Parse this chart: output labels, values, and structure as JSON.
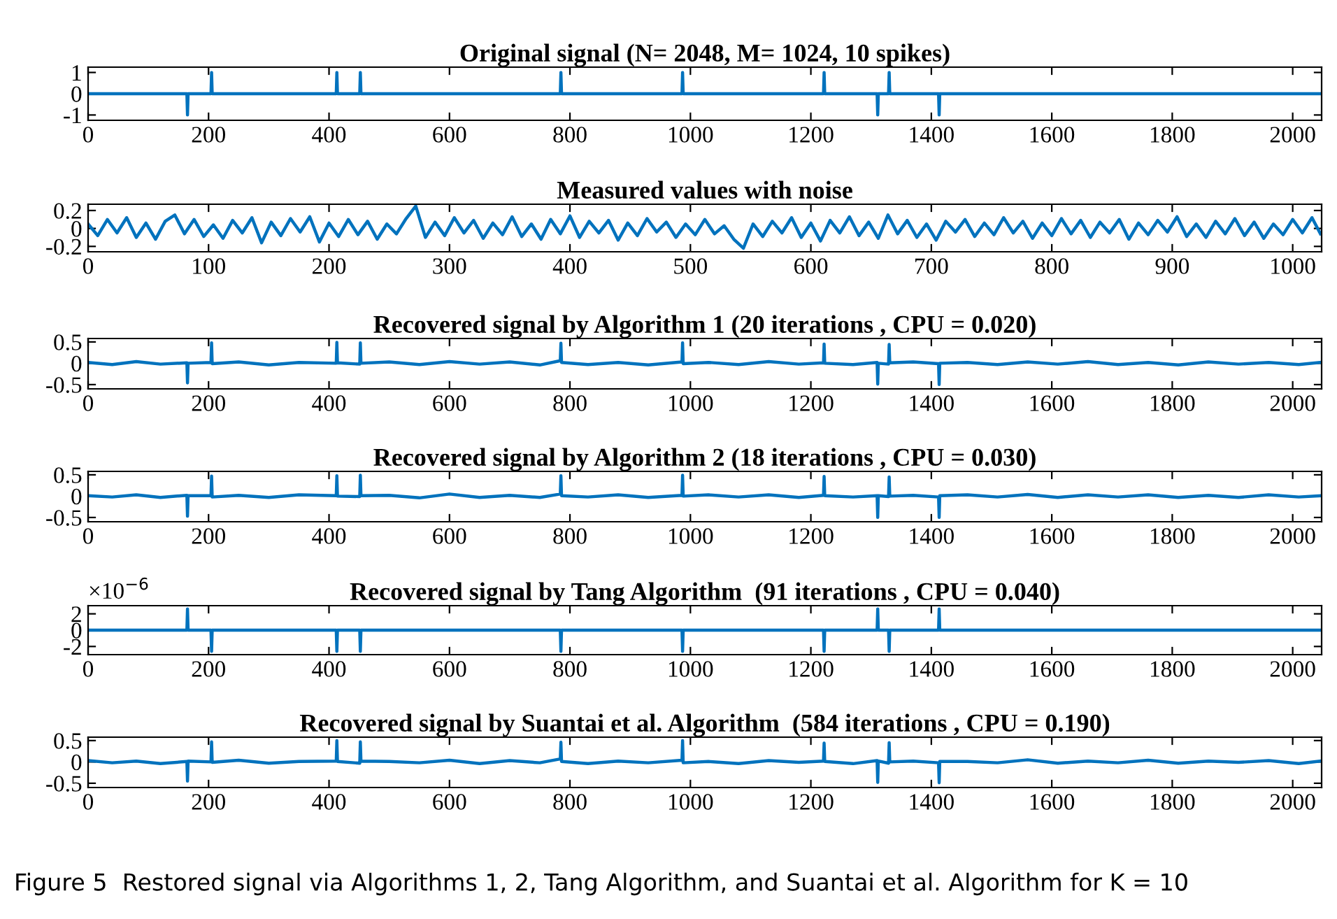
{
  "chart_data": [
    {
      "type": "line",
      "title": "Original signal (N= 2048, M= 1024, 10 spikes)",
      "xlim": [
        0,
        2048
      ],
      "xticks": [
        0,
        200,
        400,
        600,
        800,
        1000,
        1200,
        1400,
        1600,
        1800,
        2000
      ],
      "ylim": [
        -1.25,
        1.25
      ],
      "yticks": [
        {
          "value": -1,
          "label": "-1"
        },
        0,
        1
      ],
      "series": [
        {
          "color": "#0072bd",
          "x": [
            0,
            164,
            165,
            166,
            204,
            205,
            206,
            412,
            413,
            414,
            451,
            452,
            453,
            784,
            785,
            786,
            986,
            987,
            988,
            1221,
            1222,
            1223,
            1310,
            1311,
            1312,
            1329,
            1330,
            1331,
            1412,
            1413,
            1414,
            2047
          ],
          "values": [
            0,
            0,
            -1,
            0,
            0,
            1,
            0,
            0,
            1,
            0,
            0,
            1,
            0,
            0,
            1,
            0,
            0,
            1,
            0,
            0,
            1,
            0,
            0,
            -1,
            0,
            0,
            1,
            0,
            0,
            -1,
            0,
            0
          ]
        }
      ]
    },
    {
      "type": "line",
      "title": "Measured values with noise",
      "xlim": [
        0,
        1024
      ],
      "xticks": [
        0,
        100,
        200,
        300,
        400,
        500,
        600,
        700,
        800,
        900,
        1000
      ],
      "ylim": [
        -0.26,
        0.27
      ],
      "yticks": [
        {
          "value": -0.2,
          "label": "-0.2"
        },
        0,
        0.2
      ],
      "series": [
        {
          "color": "#0072bd",
          "x": [
            0,
            8,
            16,
            24,
            32,
            40,
            48,
            56,
            64,
            72,
            80,
            88,
            96,
            104,
            112,
            120,
            128,
            136,
            144,
            152,
            160,
            168,
            176,
            184,
            192,
            200,
            208,
            216,
            224,
            232,
            240,
            248,
            256,
            264,
            272,
            280,
            288,
            296,
            304,
            312,
            320,
            328,
            336,
            344,
            352,
            360,
            368,
            376,
            384,
            392,
            400,
            408,
            416,
            424,
            432,
            440,
            448,
            456,
            464,
            472,
            480,
            488,
            496,
            504,
            512,
            520,
            528,
            536,
            544,
            552,
            560,
            568,
            576,
            584,
            592,
            600,
            608,
            616,
            624,
            632,
            640,
            648,
            656,
            664,
            672,
            680,
            688,
            696,
            704,
            712,
            720,
            728,
            736,
            744,
            752,
            760,
            768,
            776,
            784,
            792,
            800,
            808,
            816,
            824,
            832,
            840,
            848,
            856,
            864,
            872,
            880,
            888,
            896,
            904,
            912,
            920,
            928,
            936,
            944,
            952,
            960,
            968,
            976,
            984,
            992,
            1000,
            1008,
            1016,
            1023
          ],
          "values": [
            0.05,
            -0.08,
            0.1,
            -0.05,
            0.12,
            -0.1,
            0.06,
            -0.12,
            0.08,
            0.15,
            -0.06,
            0.1,
            -0.09,
            0.04,
            -0.11,
            0.09,
            -0.05,
            0.12,
            -0.16,
            0.07,
            -0.08,
            0.11,
            -0.04,
            0.13,
            -0.15,
            0.06,
            -0.09,
            0.1,
            -0.07,
            0.08,
            -0.12,
            0.05,
            -0.06,
            0.11,
            0.25,
            -0.1,
            0.07,
            -0.08,
            0.12,
            -0.05,
            0.09,
            -0.11,
            0.06,
            -0.07,
            0.13,
            -0.09,
            0.05,
            -0.12,
            0.1,
            -0.06,
            0.14,
            -0.1,
            0.08,
            -0.05,
            0.09,
            -0.13,
            0.06,
            -0.08,
            0.11,
            -0.04,
            0.07,
            -0.1,
            0.05,
            -0.07,
            0.1,
            -0.06,
            0.03,
            -0.12,
            -0.22,
            0.05,
            -0.09,
            0.08,
            -0.05,
            0.12,
            -0.1,
            0.06,
            -0.14,
            0.09,
            -0.05,
            0.13,
            -0.08,
            0.07,
            -0.11,
            0.15,
            -0.06,
            0.09,
            -0.1,
            0.05,
            -0.13,
            0.08,
            -0.04,
            0.1,
            -0.09,
            0.06,
            -0.07,
            0.12,
            -0.05,
            0.08,
            -0.11,
            0.06,
            -0.08,
            0.11,
            -0.06,
            0.09,
            -0.1,
            0.07,
            -0.05,
            0.1,
            -0.12,
            0.06,
            -0.07,
            0.09,
            -0.04,
            0.13,
            -0.09,
            0.05,
            -0.1,
            0.08,
            -0.06,
            0.11,
            -0.08,
            0.07,
            -0.11,
            0.05,
            -0.07,
            0.1,
            -0.05,
            0.12,
            -0.06
          ]
        }
      ]
    },
    {
      "type": "line",
      "title": "Recovered signal by Algorithm 1 (20 iterations , CPU = 0.020)",
      "xlim": [
        0,
        2048
      ],
      "xticks": [
        0,
        200,
        400,
        600,
        800,
        1000,
        1200,
        1400,
        1600,
        1800,
        2000
      ],
      "ylim": [
        -0.6,
        0.58
      ],
      "yticks": [
        {
          "value": -0.5,
          "label": "-0.5"
        },
        0,
        0.5
      ],
      "series": [
        {
          "color": "#0072bd",
          "x": [
            0,
            40,
            80,
            120,
            164,
            165,
            166,
            204,
            205,
            206,
            250,
            300,
            350,
            412,
            413,
            414,
            451,
            452,
            453,
            500,
            550,
            600,
            650,
            700,
            750,
            784,
            785,
            786,
            830,
            880,
            930,
            986,
            987,
            988,
            1030,
            1080,
            1130,
            1180,
            1221,
            1222,
            1223,
            1270,
            1310,
            1311,
            1312,
            1329,
            1330,
            1331,
            1370,
            1412,
            1413,
            1414,
            1460,
            1510,
            1560,
            1610,
            1660,
            1710,
            1760,
            1810,
            1860,
            1910,
            1960,
            2010,
            2047
          ],
          "values": [
            0.02,
            -0.03,
            0.04,
            -0.02,
            0.01,
            -0.46,
            0.0,
            0.02,
            0.48,
            -0.01,
            0.03,
            -0.04,
            0.02,
            0.0,
            0.49,
            0.01,
            -0.02,
            0.48,
            0.0,
            0.03,
            -0.03,
            0.04,
            -0.02,
            0.03,
            -0.04,
            0.06,
            0.47,
            0.02,
            -0.03,
            0.02,
            -0.04,
            0.03,
            0.48,
            -0.01,
            0.02,
            -0.03,
            0.04,
            -0.02,
            0.01,
            0.45,
            0.0,
            -0.03,
            0.02,
            -0.49,
            0.0,
            -0.02,
            0.44,
            0.01,
            0.03,
            -0.01,
            -0.5,
            0.0,
            0.02,
            -0.03,
            0.03,
            -0.02,
            0.04,
            -0.03,
            0.02,
            -0.04,
            0.03,
            -0.02,
            0.02,
            -0.03,
            0.02
          ]
        }
      ]
    },
    {
      "type": "line",
      "title": "Recovered signal by Algorithm 2 (18 iterations , CPU = 0.030)",
      "xlim": [
        0,
        2048
      ],
      "xticks": [
        0,
        200,
        400,
        600,
        800,
        1000,
        1200,
        1400,
        1600,
        1800,
        2000
      ],
      "ylim": [
        -0.6,
        0.58
      ],
      "yticks": [
        {
          "value": -0.5,
          "label": "-0.5"
        },
        0,
        0.5
      ],
      "series": [
        {
          "color": "#0072bd",
          "x": [
            0,
            40,
            80,
            120,
            164,
            165,
            166,
            204,
            205,
            206,
            250,
            300,
            350,
            412,
            413,
            414,
            451,
            452,
            453,
            500,
            550,
            600,
            650,
            700,
            750,
            784,
            785,
            786,
            830,
            880,
            930,
            986,
            987,
            988,
            1030,
            1080,
            1130,
            1180,
            1221,
            1222,
            1223,
            1270,
            1310,
            1311,
            1312,
            1329,
            1330,
            1331,
            1370,
            1412,
            1413,
            1414,
            1460,
            1510,
            1560,
            1610,
            1660,
            1710,
            1760,
            1810,
            1860,
            1910,
            1960,
            2010,
            2047
          ],
          "values": [
            0.01,
            -0.02,
            0.03,
            -0.03,
            0.02,
            -0.47,
            0.01,
            0.01,
            0.47,
            -0.02,
            0.02,
            -0.03,
            0.03,
            0.01,
            0.48,
            0.0,
            -0.01,
            0.49,
            0.01,
            0.02,
            -0.04,
            0.05,
            -0.03,
            0.02,
            -0.03,
            0.05,
            0.48,
            0.01,
            -0.02,
            0.03,
            -0.03,
            0.02,
            0.49,
            0.0,
            0.03,
            -0.02,
            0.03,
            -0.03,
            0.02,
            0.46,
            0.01,
            -0.02,
            0.01,
            -0.5,
            0.01,
            -0.01,
            0.45,
            0.0,
            0.02,
            -0.02,
            -0.5,
            0.01,
            0.03,
            -0.02,
            0.04,
            -0.03,
            0.03,
            -0.02,
            0.03,
            -0.03,
            0.02,
            -0.03,
            0.03,
            -0.02,
            0.01
          ]
        }
      ]
    },
    {
      "type": "line",
      "title": "Recovered signal by Tang Algorithm  (91 iterations , CPU = 0.040)",
      "annotations": [
        "×10$^{−6}$"
      ],
      "xlim": [
        0,
        2048
      ],
      "xticks": [
        0,
        200,
        400,
        600,
        800,
        1000,
        1200,
        1400,
        1600,
        1800,
        2000
      ],
      "ylim": [
        -3,
        3
      ],
      "yticks": [
        {
          "value": -2,
          "label": "-2"
        },
        0,
        2
      ],
      "series": [
        {
          "color": "#0072bd",
          "x": [
            0,
            164,
            165,
            166,
            204,
            205,
            206,
            412,
            413,
            414,
            451,
            452,
            453,
            784,
            785,
            786,
            986,
            987,
            988,
            1221,
            1222,
            1223,
            1310,
            1311,
            1312,
            1329,
            1330,
            1331,
            1412,
            1413,
            1414,
            2047
          ],
          "values": [
            0,
            0,
            2.6,
            0,
            0,
            -2.6,
            0,
            0,
            -2.6,
            0,
            0,
            -2.6,
            0,
            0,
            -2.6,
            0,
            0,
            -2.6,
            0,
            0,
            -2.6,
            0,
            0,
            2.6,
            0,
            0,
            -2.6,
            0,
            0,
            2.6,
            0,
            0
          ]
        }
      ]
    },
    {
      "type": "line",
      "title": "Recovered signal by Suantai et al. Algorithm  (584 iterations , CPU = 0.190)",
      "annotations": [
        "Figure 5  Restored signal via Algorithms 1, 2, Tang Algorithm, and Suantai et al. Algorithm for K = 10"
      ],
      "xlim": [
        0,
        2048
      ],
      "xticks": [
        0,
        200,
        400,
        600,
        800,
        1000,
        1200,
        1400,
        1600,
        1800,
        2000
      ],
      "ylim": [
        -0.6,
        0.58
      ],
      "yticks": [
        {
          "value": -0.5,
          "label": "-0.5"
        },
        0,
        0.5
      ],
      "series": [
        {
          "color": "#0072bd",
          "x": [
            0,
            40,
            80,
            120,
            164,
            165,
            166,
            204,
            205,
            206,
            250,
            300,
            350,
            412,
            413,
            414,
            451,
            452,
            453,
            500,
            550,
            600,
            650,
            700,
            750,
            784,
            785,
            786,
            830,
            880,
            930,
            986,
            987,
            988,
            1030,
            1080,
            1130,
            1180,
            1221,
            1222,
            1223,
            1270,
            1310,
            1311,
            1312,
            1329,
            1330,
            1331,
            1370,
            1412,
            1413,
            1414,
            1460,
            1510,
            1560,
            1610,
            1660,
            1710,
            1760,
            1810,
            1860,
            1910,
            1960,
            2010,
            2047
          ],
          "values": [
            0.03,
            -0.02,
            0.02,
            -0.04,
            0.01,
            -0.45,
            0.02,
            0.0,
            0.47,
            -0.01,
            0.04,
            -0.03,
            0.01,
            0.02,
            0.5,
            0.01,
            -0.03,
            0.47,
            0.02,
            0.01,
            -0.02,
            0.04,
            -0.04,
            0.03,
            -0.02,
            0.07,
            0.46,
            0.01,
            -0.04,
            0.02,
            -0.02,
            0.04,
            0.5,
            -0.02,
            0.01,
            -0.04,
            0.03,
            -0.01,
            0.02,
            0.44,
            0.01,
            -0.04,
            0.03,
            -0.48,
            0.02,
            -0.03,
            0.45,
            0.0,
            0.02,
            -0.02,
            -0.49,
            0.01,
            0.01,
            -0.02,
            0.05,
            -0.03,
            0.02,
            -0.02,
            0.04,
            -0.03,
            0.02,
            -0.01,
            0.03,
            -0.04,
            0.02
          ]
        }
      ]
    }
  ]
}
